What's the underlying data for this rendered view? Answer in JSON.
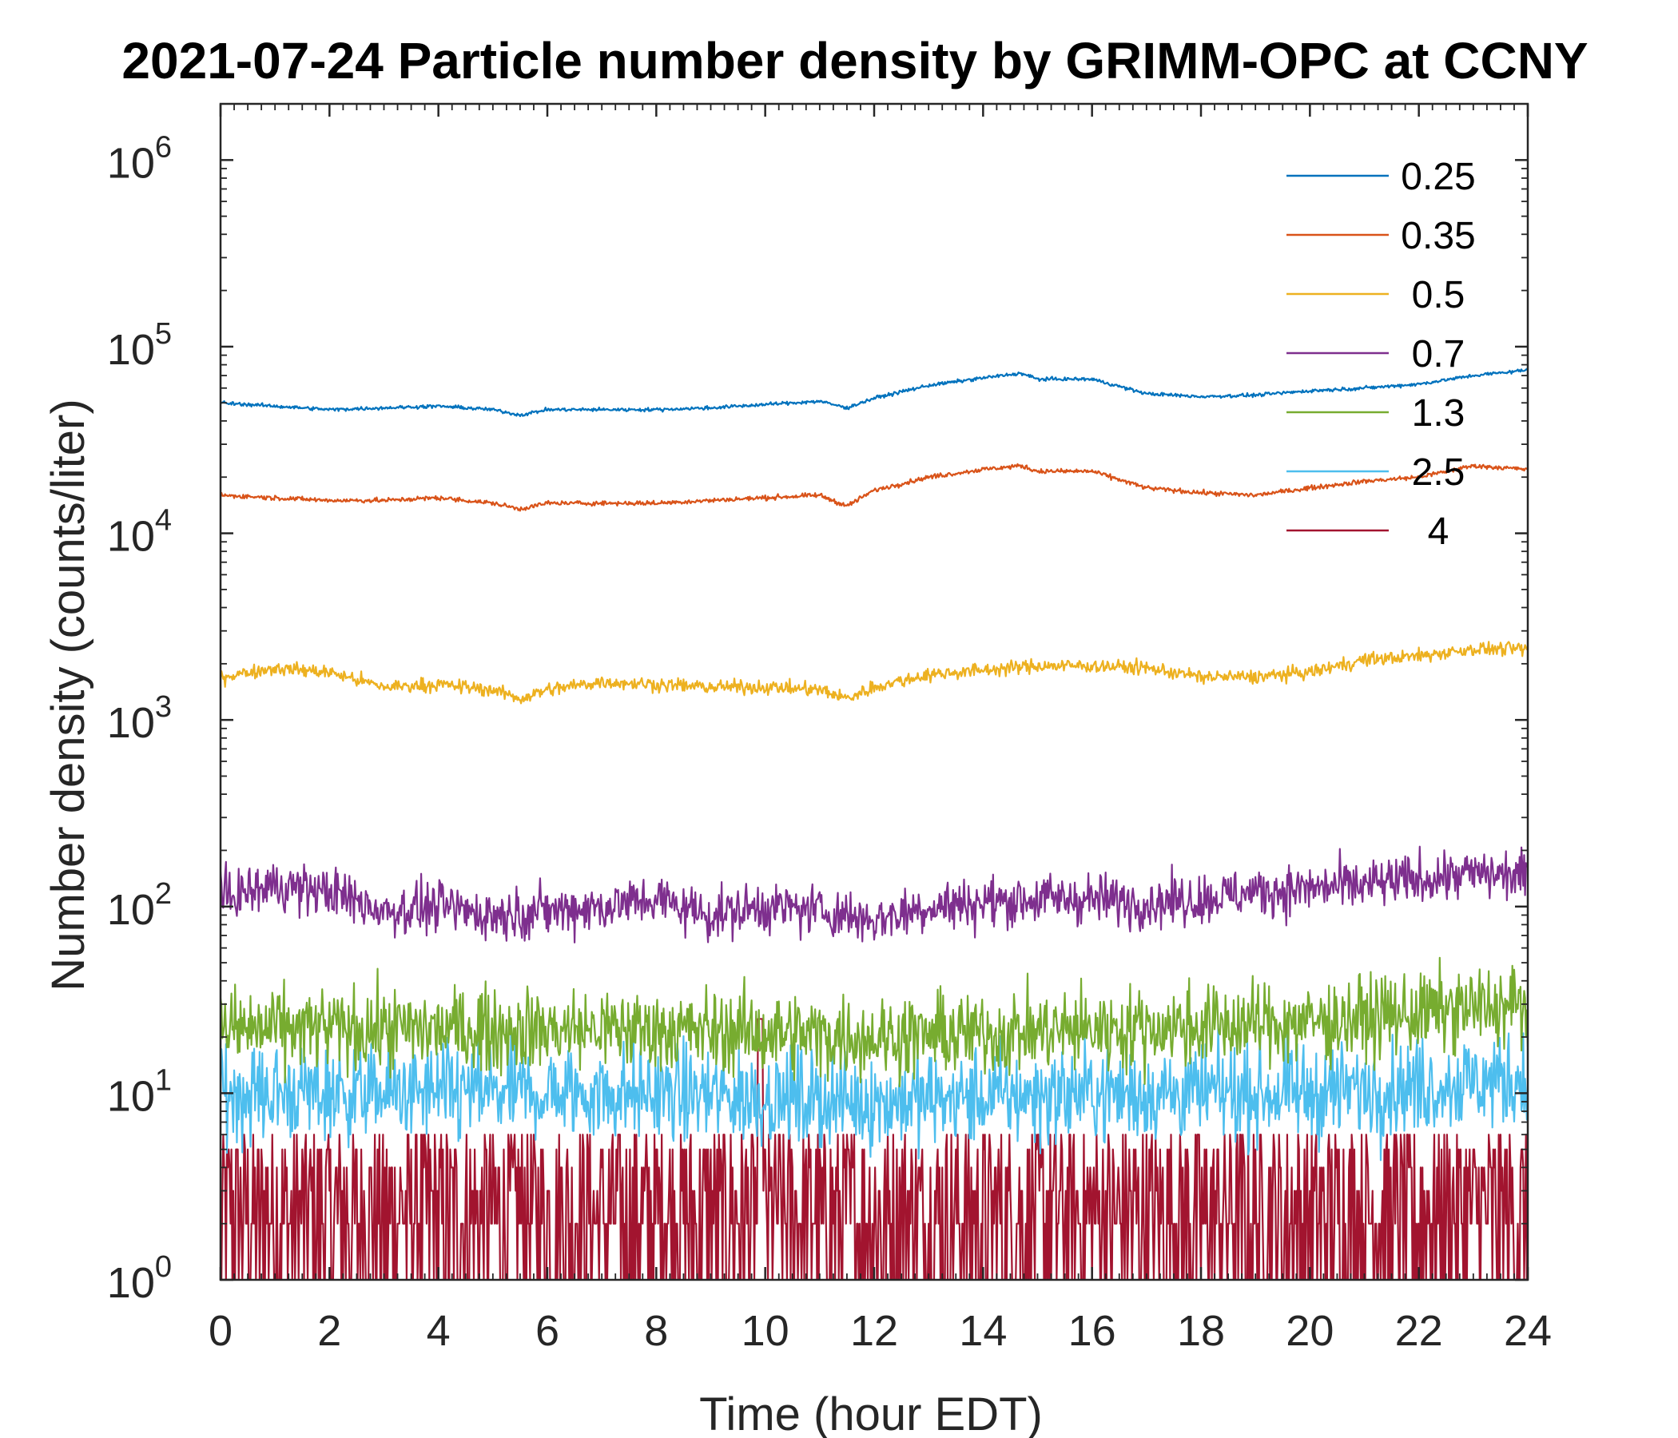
{
  "chart_data": {
    "type": "line",
    "title": "2021-07-24 Particle number density by GRIMM-OPC at CCNY",
    "xlabel": "Time (hour EDT)",
    "ylabel": "Number density (counts/liter)",
    "xlim": [
      0,
      24
    ],
    "ylim": [
      1,
      2000000
    ],
    "yscale": "log",
    "xticks": [
      0,
      2,
      4,
      6,
      8,
      10,
      12,
      14,
      16,
      18,
      20,
      22,
      24
    ],
    "yticks": [
      {
        "base": "10",
        "exp": "0",
        "value": 1
      },
      {
        "base": "10",
        "exp": "1",
        "value": 10
      },
      {
        "base": "10",
        "exp": "2",
        "value": 100
      },
      {
        "base": "10",
        "exp": "3",
        "value": 1000
      },
      {
        "base": "10",
        "exp": "4",
        "value": 10000
      },
      {
        "base": "10",
        "exp": "5",
        "value": 100000
      },
      {
        "base": "10",
        "exp": "6",
        "value": 1000000
      }
    ],
    "legend_position": "top-right",
    "series": [
      {
        "name": "0.25",
        "color": "#0072BD",
        "noise": 0.015,
        "x": [
          0,
          1,
          2,
          3,
          4,
          5,
          5.5,
          6,
          7,
          8,
          9,
          10,
          11,
          11.5,
          12,
          13,
          14,
          14.7,
          15,
          16,
          17,
          18,
          19,
          20,
          21,
          22,
          23,
          24
        ],
        "y": [
          50000,
          48000,
          46000,
          47000,
          48000,
          46000,
          43000,
          46000,
          46000,
          46000,
          47000,
          49000,
          51000,
          47000,
          53000,
          62000,
          68000,
          72000,
          67000,
          67000,
          56000,
          54000,
          55000,
          58000,
          60000,
          63000,
          70000,
          75000
        ]
      },
      {
        "name": "0.35",
        "color": "#D95319",
        "noise": 0.02,
        "x": [
          0,
          1,
          2,
          3,
          4,
          5,
          5.5,
          6,
          7,
          8,
          9,
          10,
          11,
          11.5,
          12,
          13,
          14,
          14.7,
          15,
          16,
          17,
          18,
          19,
          20,
          21,
          22,
          23,
          24
        ],
        "y": [
          16000,
          15500,
          15000,
          15000,
          15500,
          14500,
          13500,
          14500,
          14500,
          14500,
          15000,
          15500,
          16000,
          14000,
          17000,
          20000,
          22000,
          23000,
          21500,
          21500,
          17500,
          16500,
          16000,
          17500,
          19000,
          20000,
          23000,
          22000
        ]
      },
      {
        "name": "0.5",
        "color": "#EDB120",
        "noise": 0.06,
        "x": [
          0,
          1,
          2,
          3,
          4,
          5,
          5.5,
          6,
          7,
          8,
          9,
          10,
          11,
          11.5,
          12,
          13,
          14,
          15,
          16,
          17,
          18,
          19,
          20,
          21,
          22,
          23,
          24
        ],
        "y": [
          1700,
          1900,
          1800,
          1500,
          1550,
          1450,
          1300,
          1450,
          1600,
          1550,
          1500,
          1500,
          1450,
          1300,
          1500,
          1750,
          1850,
          1950,
          1950,
          1900,
          1700,
          1700,
          1800,
          2100,
          2200,
          2400,
          2400
        ]
      },
      {
        "name": "0.7",
        "color": "#7E2F8E",
        "noise": 0.22,
        "x": [
          0,
          1,
          2,
          3,
          4,
          5,
          6,
          7,
          8,
          9,
          10,
          11,
          12,
          13,
          14,
          15,
          16,
          17,
          18,
          19,
          20,
          21,
          22,
          23,
          24
        ],
        "y": [
          110,
          130,
          120,
          95,
          100,
          90,
          95,
          100,
          110,
          90,
          100,
          95,
          85,
          100,
          105,
          110,
          110,
          105,
          110,
          120,
          125,
          130,
          140,
          150,
          145
        ]
      },
      {
        "name": "1.3",
        "color": "#77AC30",
        "noise": 0.36,
        "x": [
          0,
          4,
          8,
          12,
          16,
          20,
          24
        ],
        "y": [
          22,
          22,
          22,
          20,
          22,
          24,
          30
        ]
      },
      {
        "name": "2.5",
        "color": "#4DBEEE",
        "noise": 0.42,
        "x": [
          0,
          4,
          8,
          12,
          16,
          20,
          24
        ],
        "y": [
          10,
          10,
          10,
          9,
          10,
          10,
          12
        ]
      },
      {
        "name": "4",
        "color": "#A2142F",
        "noise": 1.0,
        "x": [
          0,
          4,
          8,
          12,
          16,
          20,
          24
        ],
        "y": [
          2,
          2,
          2,
          2,
          2,
          2,
          2
        ]
      }
    ]
  }
}
